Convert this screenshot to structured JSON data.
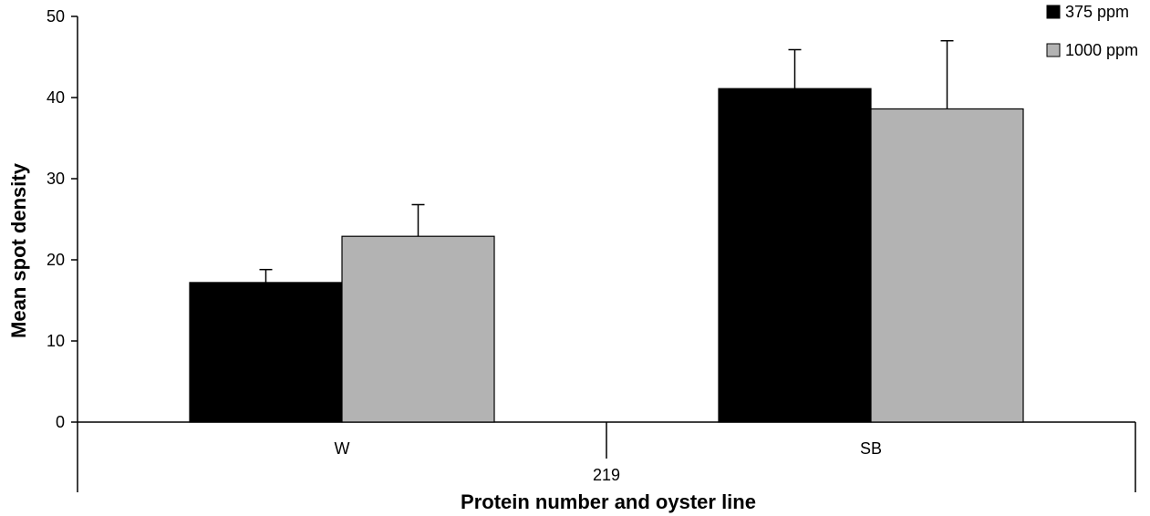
{
  "chart_data": {
    "type": "bar",
    "title": "",
    "xlabel": "Protein number and oyster line",
    "ylabel": "Mean spot density",
    "ylim": [
      0,
      50
    ],
    "yticks": [
      0,
      10,
      20,
      30,
      40,
      50
    ],
    "groups": [
      {
        "label": "219",
        "categories": [
          "W",
          "SB"
        ]
      }
    ],
    "categories": [
      "W",
      "SB"
    ],
    "series": [
      {
        "name": "375 ppm",
        "color": "#000000",
        "values": [
          17.2,
          41.1
        ],
        "errors": [
          1.6,
          4.8
        ]
      },
      {
        "name": "1000 ppm",
        "color": "#b3b3b3",
        "values": [
          22.9,
          38.6
        ],
        "errors": [
          3.9,
          8.4
        ]
      }
    ],
    "legend_position": "top-right",
    "grid": false
  }
}
